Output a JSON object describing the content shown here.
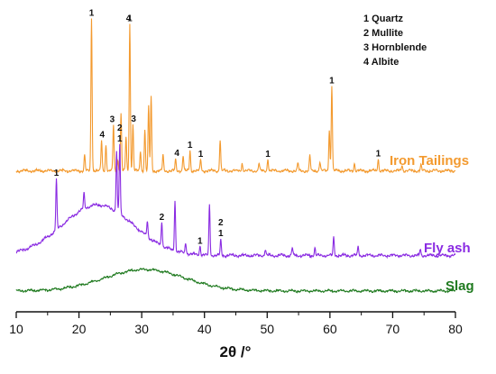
{
  "chart_data": {
    "type": "line",
    "xlabel": "2θ /°",
    "ylabel": "",
    "xlim": [
      10,
      80
    ],
    "xticks": [
      "10",
      "20",
      "30",
      "40",
      "50",
      "60",
      "70",
      "80"
    ],
    "grid": false,
    "legend_position": "top-right",
    "legend": [
      {
        "num": "1",
        "phase": "Quartz"
      },
      {
        "num": "2",
        "phase": "Mullite"
      },
      {
        "num": "3",
        "phase": "Hornblende"
      },
      {
        "num": "4",
        "phase": "Albite"
      }
    ],
    "series": [
      {
        "name": "Iron Tailings",
        "color": "#f39a2f",
        "baseline": 0.05,
        "hump": {
          "center": 27,
          "width": 10,
          "height": 0.0
        },
        "peaks": [
          {
            "x": 20.9,
            "h": 0.1
          },
          {
            "x": 22.0,
            "h": 1.0
          },
          {
            "x": 23.6,
            "h": 0.2
          },
          {
            "x": 24.3,
            "h": 0.17
          },
          {
            "x": 25.5,
            "h": 0.3
          },
          {
            "x": 26.2,
            "h": 0.07
          },
          {
            "x": 26.7,
            "h": 0.37
          },
          {
            "x": 27.5,
            "h": 0.22
          },
          {
            "x": 28.1,
            "h": 0.96
          },
          {
            "x": 28.6,
            "h": 0.3
          },
          {
            "x": 29.8,
            "h": 0.13
          },
          {
            "x": 30.5,
            "h": 0.27
          },
          {
            "x": 31.1,
            "h": 0.42
          },
          {
            "x": 31.5,
            "h": 0.48
          },
          {
            "x": 33.4,
            "h": 0.1
          },
          {
            "x": 35.4,
            "h": 0.07
          },
          {
            "x": 36.6,
            "h": 0.1
          },
          {
            "x": 37.7,
            "h": 0.13
          },
          {
            "x": 39.4,
            "h": 0.07
          },
          {
            "x": 42.5,
            "h": 0.2
          },
          {
            "x": 46.0,
            "h": 0.05
          },
          {
            "x": 48.7,
            "h": 0.05
          },
          {
            "x": 50.1,
            "h": 0.08
          },
          {
            "x": 54.9,
            "h": 0.05
          },
          {
            "x": 56.8,
            "h": 0.1
          },
          {
            "x": 58.4,
            "h": 0.06
          },
          {
            "x": 59.9,
            "h": 0.27
          },
          {
            "x": 60.3,
            "h": 0.56
          },
          {
            "x": 63.9,
            "h": 0.05
          },
          {
            "x": 67.7,
            "h": 0.08
          },
          {
            "x": 71.5,
            "h": 0.04
          },
          {
            "x": 74.5,
            "h": 0.04
          }
        ]
      },
      {
        "name": "Fly ash",
        "color": "#8a2be2",
        "baseline": 0.05,
        "hump": {
          "center": 23,
          "width": 8,
          "height": 0.33
        },
        "peaks": [
          {
            "x": 16.4,
            "h": 0.33
          },
          {
            "x": 20.8,
            "h": 0.1
          },
          {
            "x": 26.0,
            "h": 0.4
          },
          {
            "x": 26.5,
            "h": 0.45
          },
          {
            "x": 30.9,
            "h": 0.1
          },
          {
            "x": 33.2,
            "h": 0.16
          },
          {
            "x": 35.3,
            "h": 0.33
          },
          {
            "x": 37.0,
            "h": 0.07
          },
          {
            "x": 39.3,
            "h": 0.06
          },
          {
            "x": 40.8,
            "h": 0.33
          },
          {
            "x": 42.6,
            "h": 0.1
          },
          {
            "x": 49.7,
            "h": 0.04
          },
          {
            "x": 54.0,
            "h": 0.05
          },
          {
            "x": 57.6,
            "h": 0.05
          },
          {
            "x": 60.6,
            "h": 0.12
          },
          {
            "x": 64.5,
            "h": 0.06
          },
          {
            "x": 74.4,
            "h": 0.04
          }
        ]
      },
      {
        "name": "Slag",
        "color": "#1f7a1f",
        "baseline": 0.03,
        "hump": {
          "center": 30.5,
          "width": 9,
          "height": 0.17
        },
        "peaks": []
      }
    ],
    "peak_labels": [
      {
        "series": "Iron Tailings",
        "x": 22.0,
        "label": "1"
      },
      {
        "series": "Iron Tailings",
        "x": 28.1,
        "label": "1"
      },
      {
        "series": "Iron Tailings",
        "x": 27.9,
        "label": "4"
      },
      {
        "series": "Iron Tailings",
        "x": 28.7,
        "label": "3"
      },
      {
        "series": "Iron Tailings",
        "x": 23.7,
        "label": "4"
      },
      {
        "series": "Iron Tailings",
        "x": 25.3,
        "label": "3"
      },
      {
        "series": "Iron Tailings",
        "x": 35.6,
        "label": "4"
      },
      {
        "series": "Iron Tailings",
        "x": 37.7,
        "label": "1"
      },
      {
        "series": "Iron Tailings",
        "x": 39.4,
        "label": "1"
      },
      {
        "series": "Iron Tailings",
        "x": 50.1,
        "label": "1"
      },
      {
        "series": "Iron Tailings",
        "x": 60.3,
        "label": "1"
      },
      {
        "series": "Iron Tailings",
        "x": 67.7,
        "label": "1"
      },
      {
        "series": "Fly ash",
        "x": 16.4,
        "label": "1"
      },
      {
        "series": "Fly ash",
        "x": 26.5,
        "label": "1"
      },
      {
        "series": "Fly ash",
        "x": 26.5,
        "label": "2"
      },
      {
        "series": "Fly ash",
        "x": 33.2,
        "label": "2"
      },
      {
        "series": "Fly ash",
        "x": 39.3,
        "label": "1"
      },
      {
        "series": "Fly ash",
        "x": 42.6,
        "label": "1"
      },
      {
        "series": "Fly ash",
        "x": 42.6,
        "label": "2"
      }
    ]
  }
}
